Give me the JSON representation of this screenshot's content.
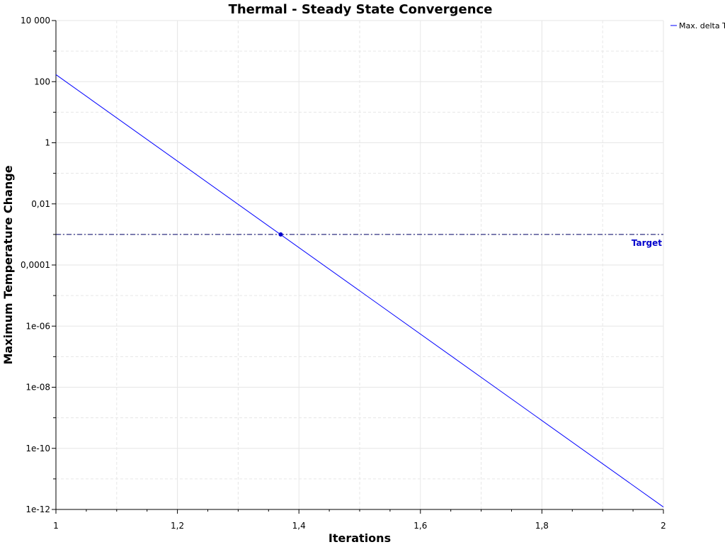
{
  "chart_data": {
    "type": "line",
    "title": "Thermal - Steady State Convergence",
    "xlabel": "Iterations",
    "ylabel": "Maximum Temperature Change",
    "xlim": [
      1,
      2
    ],
    "ylim": [
      1e-12,
      10000
    ],
    "yscale": "log",
    "x_ticks": [
      {
        "value": 1,
        "label": "1"
      },
      {
        "value": 1.2,
        "label": "1,2"
      },
      {
        "value": 1.4,
        "label": "1,4"
      },
      {
        "value": 1.6,
        "label": "1,6"
      },
      {
        "value": 1.8,
        "label": "1,8"
      },
      {
        "value": 2,
        "label": "2"
      }
    ],
    "y_ticks": [
      {
        "value": 10000,
        "label": "10 000"
      },
      {
        "value": 100,
        "label": "100"
      },
      {
        "value": 1,
        "label": "1"
      },
      {
        "value": 0.01,
        "label": "0,01"
      },
      {
        "value": 0.0001,
        "label": "0,0001"
      },
      {
        "value": 1e-06,
        "label": "1e-06"
      },
      {
        "value": 1e-08,
        "label": "1e-08"
      },
      {
        "value": 1e-10,
        "label": "1e-10"
      },
      {
        "value": 1e-12,
        "label": "1e-12"
      }
    ],
    "grid": true,
    "legend_position": "top-right",
    "series": [
      {
        "name": "Max. delta T",
        "color": "#0000ff",
        "x": [
          1,
          2
        ],
        "y": [
          170,
          1.2e-12
        ]
      }
    ],
    "reference_line": {
      "label": "Target",
      "y": 0.001,
      "color": "#000066",
      "label_color": "#0000cc",
      "style": "dash-dot"
    },
    "marker": {
      "x": 1.37,
      "y": 0.001,
      "color": "#0000cc"
    }
  }
}
